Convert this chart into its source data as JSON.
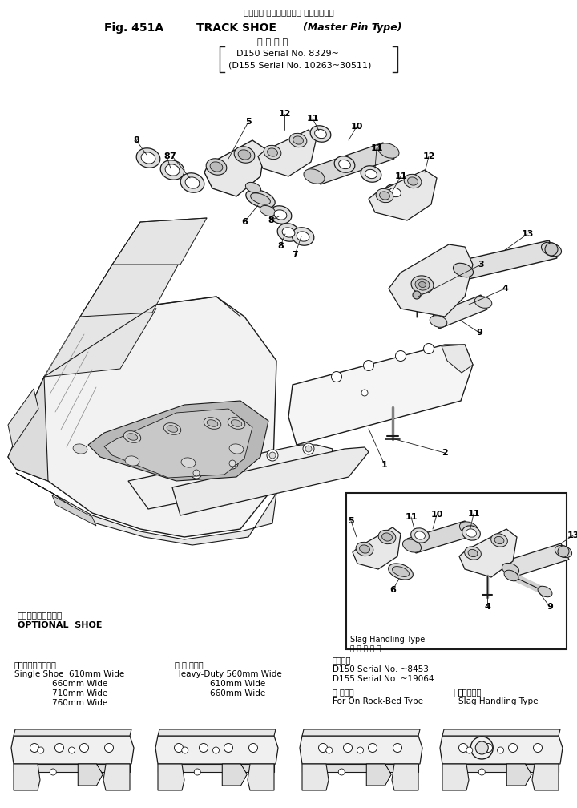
{
  "title_line1_jp": "トラック シュー（マスタ ピンタイプ）",
  "title_line2": "Fig. 451A  TRACK SHOE (Master Pin Type)",
  "title_line3_jp": "通用号機",
  "title_line4": "D150 Serial No. 8329̃",
  "title_line5": "(D155 Serial No. 10263̃̃30511)",
  "optional_shoe_jp": "オプショナルシュー",
  "optional_shoe_en": "OPTIONAL  SHOE",
  "single_shoe_jp": "シングルシュー　幅",
  "single_shoe_en": "Single Shoe  610mm Wide",
  "single_shoe_2": "660mm Wide",
  "single_shoe_3": "710mm Wide",
  "single_shoe_4": "760mm Wide",
  "heavy_duty_jp": "強化形　幅",
  "heavy_duty_en": "Heavy-Duty 560mm Wide",
  "heavy_duty_2": "610mm Wide",
  "heavy_duty_3": "660mm Wide",
  "applicable_jp": "適用号機",
  "applicable_1": "D150 Serial No. 〘8453",
  "applicable_2": "D155 Serial No. 〘19064",
  "rock_bed_jp": "岩盤　用",
  "rock_bed_en": "For On Rock-Bed Type",
  "slag_dot": "・",
  "slag_jp": "ノロ処理用",
  "slag_en": "Slag Handling Type",
  "inset_label_jp": "ノロ処理用",
  "inset_label_en": "Slag Handling Type",
  "bg_color": "#ffffff",
  "line_color": "#1a1a1a"
}
